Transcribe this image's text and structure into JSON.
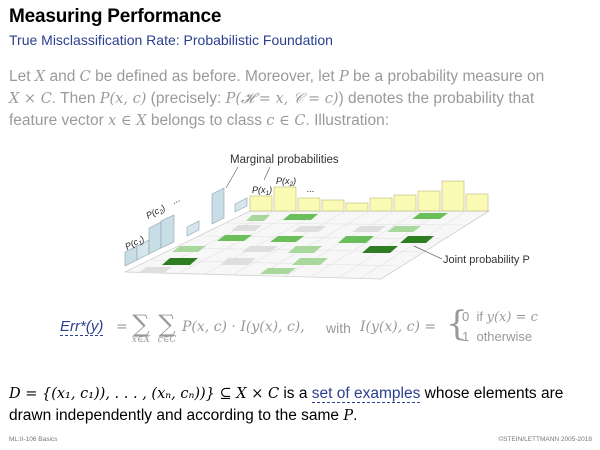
{
  "title": "Measuring Performance",
  "subtitle": "True Misclassification Rate: Probabilistic Foundation",
  "intro": {
    "t1": "Let ",
    "X": "X",
    "t2": " and ",
    "C": "C",
    "t3": " be defined as before. Moreover, let ",
    "P": "P",
    "t4": " be a probability measure on",
    "XxC": "X × C",
    "t5": ". Then ",
    "Pxc": "P(x, c)",
    "t6": " (precisely: ",
    "Pprec": "P(𝓗 = x, 𝒞 = c)",
    "t7": ") denotes the probability that",
    "t8": "feature vector ",
    "xinX": "x ∈ X",
    "t9": " belongs to class ",
    "cinC": "c ∈ C",
    "t10": ". Illustration:"
  },
  "illustration": {
    "marginal_label": "Marginal probabilities",
    "joint_label": "Joint probability P",
    "pc1": "P(c",
    "pc1_sub": "1",
    "pc2": "P(c",
    "pc2_sub": "2",
    "px1": "P(x",
    "px1_sub": "1",
    "px2": "P(x",
    "px2_sub": "2",
    "ellipsis": "...",
    "colors": {
      "bar_blue": "#c8dde6",
      "bar_yellow": "#fafab4",
      "green_dark": "#2f7d23",
      "green_mid": "#6abf5a",
      "green_light": "#a9d89c",
      "gray_cell": "#dedede"
    }
  },
  "formula": {
    "err": "Err*(y)",
    "eq1": "=",
    "sum1_sub": "x∈X",
    "sum2_sub": "c∈C",
    "body": "P(x, c) · I(y(x), c),",
    "with": "with",
    "indicator": "I(y(x), c) =",
    "case1_val": "0",
    "case1_text": "if",
    "case1_cond": "y(x) = c",
    "case2_val": "1",
    "case2_text": "otherwise"
  },
  "dataset": {
    "D": "D = {(x₁, c₁)), . . . , (xₙ, cₙ))} ⊆ X × C",
    "t1": " is a ",
    "link": "set of examples",
    "t2": " whose elements are",
    "t3": "drawn independently and according to the same ",
    "P": "P",
    "t4": "."
  },
  "footer": {
    "left": "ML:II-106    Basics",
    "right": "©STEIN/LETTMANN 2005-2018"
  }
}
